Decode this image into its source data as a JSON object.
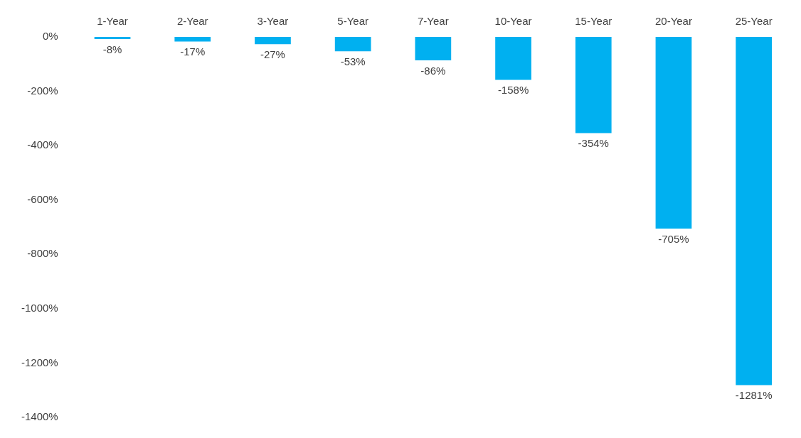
{
  "chart_data": {
    "type": "bar",
    "categories": [
      "1-Year",
      "2-Year",
      "3-Year",
      "5-Year",
      "7-Year",
      "10-Year",
      "15-Year",
      "20-Year",
      "25-Year"
    ],
    "values": [
      -8,
      -17,
      -27,
      -53,
      -86,
      -158,
      -354,
      -705,
      -1281
    ],
    "value_labels": [
      "-8%",
      "-17%",
      "-27%",
      "-53%",
      "-86%",
      "-158%",
      "-354%",
      "-705%",
      "-1281%"
    ],
    "color": "#00b0f0",
    "ylim": [
      -1400,
      0
    ],
    "yticks": [
      {
        "value": 0,
        "label": "0%"
      },
      {
        "value": -200,
        "label": "-200%"
      },
      {
        "value": -400,
        "label": "-400%"
      },
      {
        "value": -600,
        "label": "-600%"
      },
      {
        "value": -800,
        "label": "-800%"
      },
      {
        "value": -1000,
        "label": "-1000%"
      },
      {
        "value": -1200,
        "label": "-1200%"
      },
      {
        "value": -1400,
        "label": "-1400%"
      }
    ],
    "grid": false,
    "legend": false
  }
}
